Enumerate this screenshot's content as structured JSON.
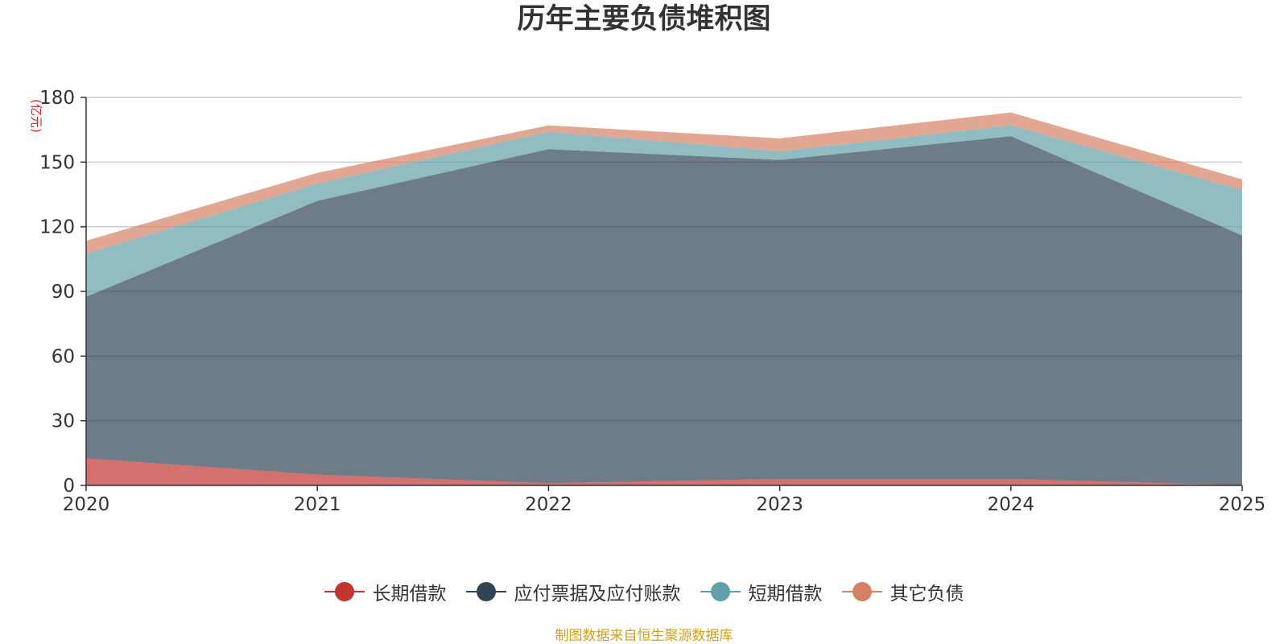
{
  "chart_data": {
    "type": "area",
    "stacked": true,
    "title": "历年主要负债堆积图",
    "ylabel": "(亿元)",
    "xlabel": "",
    "categories": [
      "2020",
      "2021",
      "2022",
      "2023",
      "2024",
      "2025"
    ],
    "ylim": [
      0,
      180
    ],
    "yticks": [
      0,
      30,
      60,
      90,
      120,
      150,
      180
    ],
    "grid": true,
    "legend_position": "bottom",
    "series": [
      {
        "name": "长期借款",
        "values": [
          12.5,
          5,
          1,
          3,
          3,
          0
        ],
        "color": "#c23531"
      },
      {
        "name": "应付票据及应付账款",
        "values": [
          75,
          127,
          155,
          148,
          159,
          116
        ],
        "color": "#2f4554"
      },
      {
        "name": "短期借款",
        "values": [
          20,
          8,
          8,
          4,
          5,
          21
        ],
        "color": "#61a0a8"
      },
      {
        "name": "其它负债",
        "values": [
          6,
          5,
          3,
          6,
          6,
          5
        ],
        "color": "#d48265"
      }
    ]
  },
  "source_note": "制图数据来自恒生聚源数据库"
}
